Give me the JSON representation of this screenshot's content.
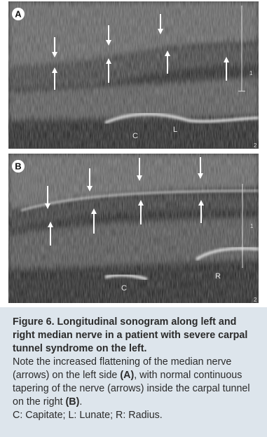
{
  "figure": {
    "panels": [
      {
        "label": "A",
        "annotations": [
          "C",
          "L"
        ],
        "scale": [
          "1",
          "2"
        ]
      },
      {
        "label": "B",
        "annotations": [
          "C",
          "R"
        ],
        "scale": [
          "1",
          "2"
        ]
      }
    ],
    "caption": {
      "title": "Figure 6. Longitudinal sonogram along left and right median nerve in a patient with severe carpal tunnel syndrome on the left.",
      "body": [
        "Note the increased flattening of the median nerve (arrows) on the left side ",
        "(A)",
        ", with normal continuous tapering of the nerve (arrows) inside the carpal tunnel on the right ",
        "(B)",
        "."
      ],
      "legend": "C: Capitate; L: Lunate; R: Radius."
    }
  }
}
